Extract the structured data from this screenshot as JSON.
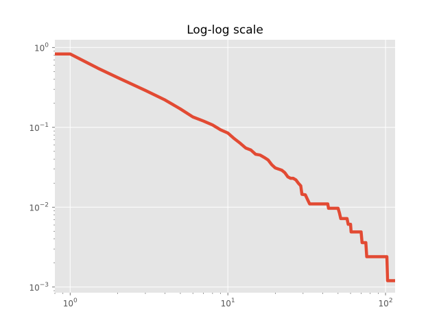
{
  "chart_data": {
    "type": "line",
    "title": "Log-log scale",
    "xlabel": "",
    "ylabel": "",
    "xscale": "log",
    "yscale": "log",
    "xlim": [
      0.8,
      115
    ],
    "ylim": [
      0.00085,
      1.25
    ],
    "grid": true,
    "style": "ggplot",
    "line_color": "#e24a33",
    "x_ticks": [
      {
        "value": 1,
        "base": "10",
        "exp": "0"
      },
      {
        "value": 10,
        "base": "10",
        "exp": "1"
      },
      {
        "value": 100,
        "base": "10",
        "exp": "2"
      }
    ],
    "y_ticks": [
      {
        "value": 1,
        "base": "10",
        "exp": "0"
      },
      {
        "value": 0.1,
        "base": "10",
        "exp": "−1"
      },
      {
        "value": 0.01,
        "base": "10",
        "exp": "−2"
      },
      {
        "value": 0.001,
        "base": "10",
        "exp": "−3"
      }
    ],
    "series": [
      {
        "points": [
          [
            0.8,
            0.83
          ],
          [
            1.0,
            0.83
          ],
          [
            1.5,
            0.55
          ],
          [
            2.0,
            0.42
          ],
          [
            3.0,
            0.29
          ],
          [
            4.0,
            0.22
          ],
          [
            5.0,
            0.17
          ],
          [
            6.0,
            0.135
          ],
          [
            7.0,
            0.12
          ],
          [
            8.0,
            0.107
          ],
          [
            9.0,
            0.093
          ],
          [
            10.0,
            0.085
          ],
          [
            11.0,
            0.072
          ],
          [
            12.0,
            0.063
          ],
          [
            13.0,
            0.055
          ],
          [
            14.0,
            0.052
          ],
          [
            15.0,
            0.046
          ],
          [
            16.0,
            0.045
          ],
          [
            17.0,
            0.042
          ],
          [
            18.0,
            0.039
          ],
          [
            19.0,
            0.034
          ],
          [
            20.0,
            0.031
          ],
          [
            21.0,
            0.03
          ],
          [
            22.0,
            0.029
          ],
          [
            23.0,
            0.027
          ],
          [
            24.0,
            0.024
          ],
          [
            25.0,
            0.023
          ],
          [
            26.0,
            0.023
          ],
          [
            27.0,
            0.022
          ],
          [
            28.0,
            0.02
          ],
          [
            29.0,
            0.0185
          ],
          [
            29.5,
            0.0145
          ],
          [
            31.0,
            0.0143
          ],
          [
            32.0,
            0.0125
          ],
          [
            33.0,
            0.011
          ],
          [
            43.0,
            0.011
          ],
          [
            43.5,
            0.0097
          ],
          [
            50.0,
            0.0097
          ],
          [
            51.0,
            0.0085
          ],
          [
            52.0,
            0.0072
          ],
          [
            57.0,
            0.0072
          ],
          [
            58.0,
            0.0061
          ],
          [
            60.0,
            0.0061
          ],
          [
            60.5,
            0.0049
          ],
          [
            70.0,
            0.0049
          ],
          [
            71.0,
            0.0036
          ],
          [
            75.0,
            0.0036
          ],
          [
            76.0,
            0.0024
          ],
          [
            102.0,
            0.0024
          ],
          [
            103.0,
            0.0012
          ],
          [
            115.0,
            0.0012
          ]
        ]
      }
    ]
  }
}
